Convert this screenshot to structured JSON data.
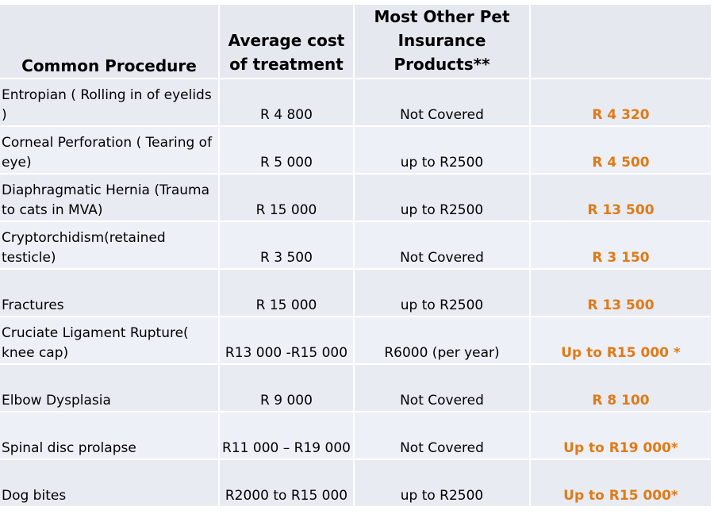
{
  "headers": {
    "procedure": "Common Procedure",
    "avg_cost": "Average cost of treatment",
    "other": "Most Other Pet Insurance Products**",
    "ours": ""
  },
  "rows": [
    {
      "procedure": "Entropian ( Rolling in of eyelids )",
      "avg_cost": "R 4 800",
      "other": "Not Covered",
      "ours": "R 4 320"
    },
    {
      "procedure": "Corneal Perforation ( Tearing of eye)",
      "avg_cost": "R 5 000",
      "other": "up to R2500",
      "ours": "R 4 500"
    },
    {
      "procedure": "Diaphragmatic Hernia (Trauma to cats in MVA)",
      "avg_cost": "R 15 000",
      "other": "up to R2500",
      "ours": "R 13 500"
    },
    {
      "procedure": "Cryptorchidism(retained testicle)",
      "avg_cost": "R 3 500",
      "other": "Not Covered",
      "ours": "R 3 150"
    },
    {
      "procedure": "Fractures",
      "avg_cost": "R 15 000",
      "other": "up to R2500",
      "ours": "R 13 500"
    },
    {
      "procedure": "Cruciate Ligament Rupture( knee cap)",
      "avg_cost": "R13 000 -R15 000",
      "other": "R6000 (per year)",
      "ours": "Up to  R15 000 *"
    },
    {
      "procedure": "Elbow Dysplasia",
      "avg_cost": "R 9 000",
      "other": "Not Covered",
      "ours": "R 8 100"
    },
    {
      "procedure": "Spinal disc  prolapse",
      "avg_cost": "R11 000 – R19 000",
      "other": "Not Covered",
      "ours": "Up to  R19 000*"
    },
    {
      "procedure": "Dog bites",
      "avg_cost": "R2000 to R15 000",
      "other": "up to R2500",
      "ours": "Up to  R15 000*"
    }
  ],
  "colors": {
    "accent": "#e07a16",
    "cell_bg": "#e8ebf2"
  }
}
